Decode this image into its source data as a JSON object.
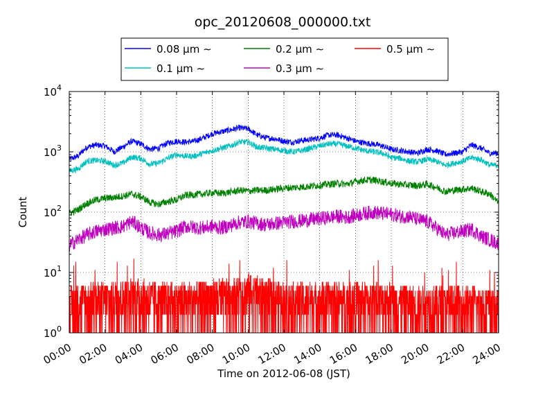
{
  "chart_data": {
    "type": "line",
    "title": "opc_20120608_000000.txt",
    "xlabel": "Time on 2012-06-08 (JST)",
    "ylabel": "Count",
    "x_unit": "hour",
    "xlim": [
      0,
      24
    ],
    "ylim": [
      1,
      10000
    ],
    "yscale": "log",
    "grid": true,
    "legend_position": "top-center",
    "x_ticks": [
      "00:00",
      "02:00",
      "04:00",
      "06:00",
      "08:00",
      "10:00",
      "12:00",
      "14:00",
      "16:00",
      "18:00",
      "20:00",
      "22:00",
      "24:00"
    ],
    "y_ticks": [
      {
        "value": 1,
        "base": "10",
        "exp": "0"
      },
      {
        "value": 10,
        "base": "10",
        "exp": "1"
      },
      {
        "value": 100,
        "base": "10",
        "exp": "2"
      },
      {
        "value": 1000,
        "base": "10",
        "exp": "3"
      },
      {
        "value": 10000,
        "base": "10",
        "exp": "4"
      }
    ],
    "series": [
      {
        "name": "0.08 μm ∼",
        "color": "#0000ff",
        "x": [
          0,
          0.5,
          1,
          1.5,
          2,
          2.5,
          3,
          3.5,
          4,
          4.5,
          5,
          5.5,
          6,
          6.5,
          7,
          7.5,
          8,
          8.5,
          9,
          9.5,
          10,
          10.5,
          11,
          11.5,
          12,
          12.5,
          13,
          13.5,
          14,
          14.5,
          15,
          15.5,
          16,
          16.5,
          17,
          17.5,
          18,
          18.5,
          19,
          19.5,
          20,
          20.5,
          21,
          21.5,
          22,
          22.5,
          23,
          23.5,
          24
        ],
        "y": [
          750,
          850,
          1200,
          1300,
          1250,
          1000,
          1200,
          1500,
          1350,
          1100,
          1150,
          1400,
          1500,
          1450,
          1500,
          1700,
          2000,
          2150,
          2300,
          2500,
          2400,
          1900,
          1700,
          1650,
          1500,
          1450,
          1550,
          1600,
          1700,
          1900,
          1900,
          1700,
          1500,
          1400,
          1350,
          1250,
          1100,
          1050,
          1000,
          950,
          1100,
          1050,
          900,
          950,
          1000,
          1300,
          1150,
          950,
          950
        ],
        "noise": 0.05
      },
      {
        "name": "0.1 μm ∼",
        "color": "#00bfbf",
        "x": [
          0,
          0.5,
          1,
          1.5,
          2,
          2.5,
          3,
          3.5,
          4,
          4.5,
          5,
          5.5,
          6,
          6.5,
          7,
          7.5,
          8,
          8.5,
          9,
          9.5,
          10,
          10.5,
          11,
          11.5,
          12,
          12.5,
          13,
          13.5,
          14,
          14.5,
          15,
          15.5,
          16,
          16.5,
          17,
          17.5,
          18,
          18.5,
          19,
          19.5,
          20,
          20.5,
          21,
          21.5,
          22,
          22.5,
          23,
          23.5,
          24
        ],
        "y": [
          480,
          520,
          700,
          720,
          700,
          600,
          650,
          820,
          780,
          620,
          650,
          780,
          900,
          850,
          850,
          950,
          1050,
          1150,
          1250,
          1450,
          1450,
          1200,
          1150,
          1100,
          1050,
          1000,
          1050,
          1150,
          1250,
          1350,
          1350,
          1250,
          1150,
          1050,
          1000,
          950,
          800,
          780,
          700,
          680,
          750,
          700,
          600,
          650,
          700,
          800,
          750,
          600,
          600
        ],
        "noise": 0.05
      },
      {
        "name": "0.2 μm ∼",
        "color": "#008000",
        "x": [
          0,
          0.5,
          1,
          1.5,
          2,
          2.5,
          3,
          3.5,
          4,
          4.5,
          5,
          5.5,
          6,
          6.5,
          7,
          7.5,
          8,
          8.5,
          9,
          9.5,
          10,
          10.5,
          11,
          11.5,
          12,
          12.5,
          13,
          13.5,
          14,
          14.5,
          15,
          15.5,
          16,
          16.5,
          17,
          17.5,
          18,
          18.5,
          19,
          19.5,
          20,
          20.5,
          21,
          21.5,
          22,
          22.5,
          23,
          23.5,
          24
        ],
        "y": [
          95,
          110,
          140,
          160,
          170,
          175,
          185,
          200,
          180,
          145,
          135,
          150,
          160,
          190,
          195,
          200,
          210,
          205,
          215,
          230,
          225,
          230,
          230,
          240,
          250,
          255,
          260,
          270,
          280,
          290,
          300,
          290,
          320,
          340,
          340,
          320,
          300,
          290,
          280,
          275,
          290,
          260,
          220,
          230,
          240,
          250,
          220,
          200,
          140
        ],
        "noise": 0.06
      },
      {
        "name": "0.3 μm ∼",
        "color": "#bf00bf",
        "x": [
          0,
          0.5,
          1,
          1.5,
          2,
          2.5,
          3,
          3.5,
          4,
          4.5,
          5,
          5.5,
          6,
          6.5,
          7,
          7.5,
          8,
          8.5,
          9,
          9.5,
          10,
          10.5,
          11,
          11.5,
          12,
          12.5,
          13,
          13.5,
          14,
          14.5,
          15,
          15.5,
          16,
          16.5,
          17,
          17.5,
          18,
          18.5,
          19,
          19.5,
          20,
          20.5,
          21,
          21.5,
          22,
          22.5,
          23,
          23.5,
          24
        ],
        "y": [
          28,
          35,
          42,
          48,
          52,
          55,
          58,
          70,
          55,
          45,
          42,
          44,
          48,
          58,
          56,
          55,
          58,
          55,
          60,
          68,
          70,
          65,
          62,
          65,
          68,
          70,
          72,
          75,
          78,
          82,
          85,
          82,
          88,
          95,
          100,
          95,
          92,
          85,
          85,
          75,
          70,
          55,
          42,
          45,
          48,
          52,
          40,
          35,
          30
        ],
        "noise": 0.12
      },
      {
        "name": "0.5 μm ∼",
        "color": "#ff0000",
        "x": [
          0,
          1,
          2,
          3,
          4,
          5,
          6,
          7,
          8,
          9,
          10,
          11,
          12,
          13,
          14,
          15,
          16,
          17,
          18,
          19,
          20,
          21,
          22,
          23,
          24
        ],
        "y": [
          3,
          3.5,
          3.5,
          4,
          4,
          3.5,
          3.5,
          3.5,
          4,
          4,
          5,
          4,
          3.5,
          3.5,
          3.5,
          3.5,
          3.5,
          3.5,
          3.5,
          3,
          3,
          3,
          3,
          3,
          2.5
        ],
        "noise": 0.6
      }
    ]
  }
}
